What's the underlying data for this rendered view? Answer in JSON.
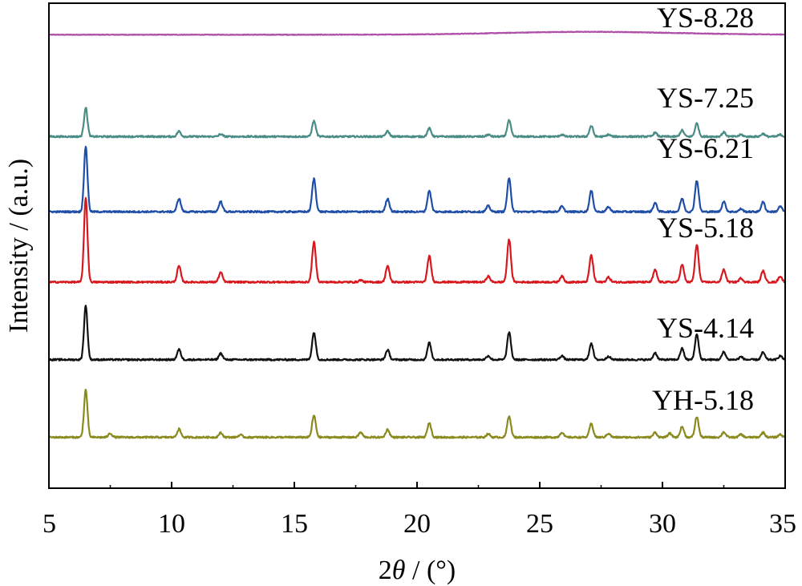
{
  "chart_data": {
    "type": "line",
    "xlabel_prefix": "2",
    "xlabel_symbol": "θ",
    "xlabel_suffix": " / (°)",
    "ylabel": "Intensity / (a.u.)",
    "xlim": [
      5,
      35
    ],
    "xticks": [
      5,
      10,
      15,
      20,
      25,
      30,
      35
    ],
    "ylim": [
      0,
      100
    ],
    "y_ticks_shown": false,
    "grid": false,
    "legend": "none (series labelled inline above each trace)",
    "peak_positions": [
      6.5,
      7.5,
      10.3,
      12.0,
      12.8,
      15.8,
      17.7,
      18.8,
      20.5,
      22.9,
      23.75,
      25.9,
      27.1,
      27.8,
      29.7,
      30.3,
      30.8,
      31.4,
      32.5,
      33.2,
      34.1,
      34.8
    ],
    "series": [
      {
        "name": "YS-8.28",
        "color": "#b04fa8",
        "baseline": 93.5,
        "peaks": [],
        "broad_hump": {
          "center": 27,
          "height": 0.6
        }
      },
      {
        "name": "YS-7.25",
        "color": "#4a8c86",
        "baseline": 72.5,
        "peaks": [
          6.0,
          0,
          1.1,
          0.5,
          0,
          3.2,
          0,
          1.1,
          1.7,
          0.4,
          3.3,
          0.4,
          2.2,
          0.4,
          0.8,
          0,
          1.3,
          2.7,
          0.9,
          0.4,
          0.6,
          0.4
        ]
      },
      {
        "name": "YS-6.21",
        "color": "#1f4ea6",
        "baseline": 57,
        "peaks": [
          13.5,
          0,
          2.7,
          2.1,
          0,
          6.8,
          0,
          2.7,
          4.4,
          1.2,
          6.8,
          1.1,
          4.3,
          1.0,
          1.8,
          0,
          2.7,
          6.4,
          2.1,
          0.6,
          2.0,
          1.1
        ]
      },
      {
        "name": "YS-5.18",
        "color": "#d7191f",
        "baseline": 42.5,
        "peaks": [
          17.5,
          0,
          3.3,
          2.0,
          0,
          8.2,
          0.4,
          3.3,
          5.4,
          1.2,
          8.8,
          1.2,
          5.5,
          1.0,
          2.5,
          0,
          3.6,
          7.6,
          2.6,
          0.8,
          2.3,
          1.2
        ]
      },
      {
        "name": "YS-4.14",
        "color": "#111111",
        "baseline": 26.5,
        "peaks": [
          11.2,
          0,
          2.1,
          1.3,
          0,
          5.6,
          0,
          2.0,
          3.5,
          0.8,
          5.6,
          0.8,
          3.4,
          0.7,
          1.4,
          0,
          2.3,
          5.2,
          1.6,
          0.6,
          1.5,
          0.8
        ]
      },
      {
        "name": "YH-5.18",
        "color": "#8a8a1e",
        "baseline": 10.5,
        "peaks": [
          9.8,
          0.8,
          1.7,
          0.9,
          0.5,
          4.5,
          1.0,
          1.6,
          3.0,
          0.7,
          4.4,
          1.0,
          2.8,
          0.8,
          1.0,
          0.8,
          2.2,
          4.2,
          1.1,
          0.6,
          1.0,
          0.6
        ]
      }
    ]
  }
}
